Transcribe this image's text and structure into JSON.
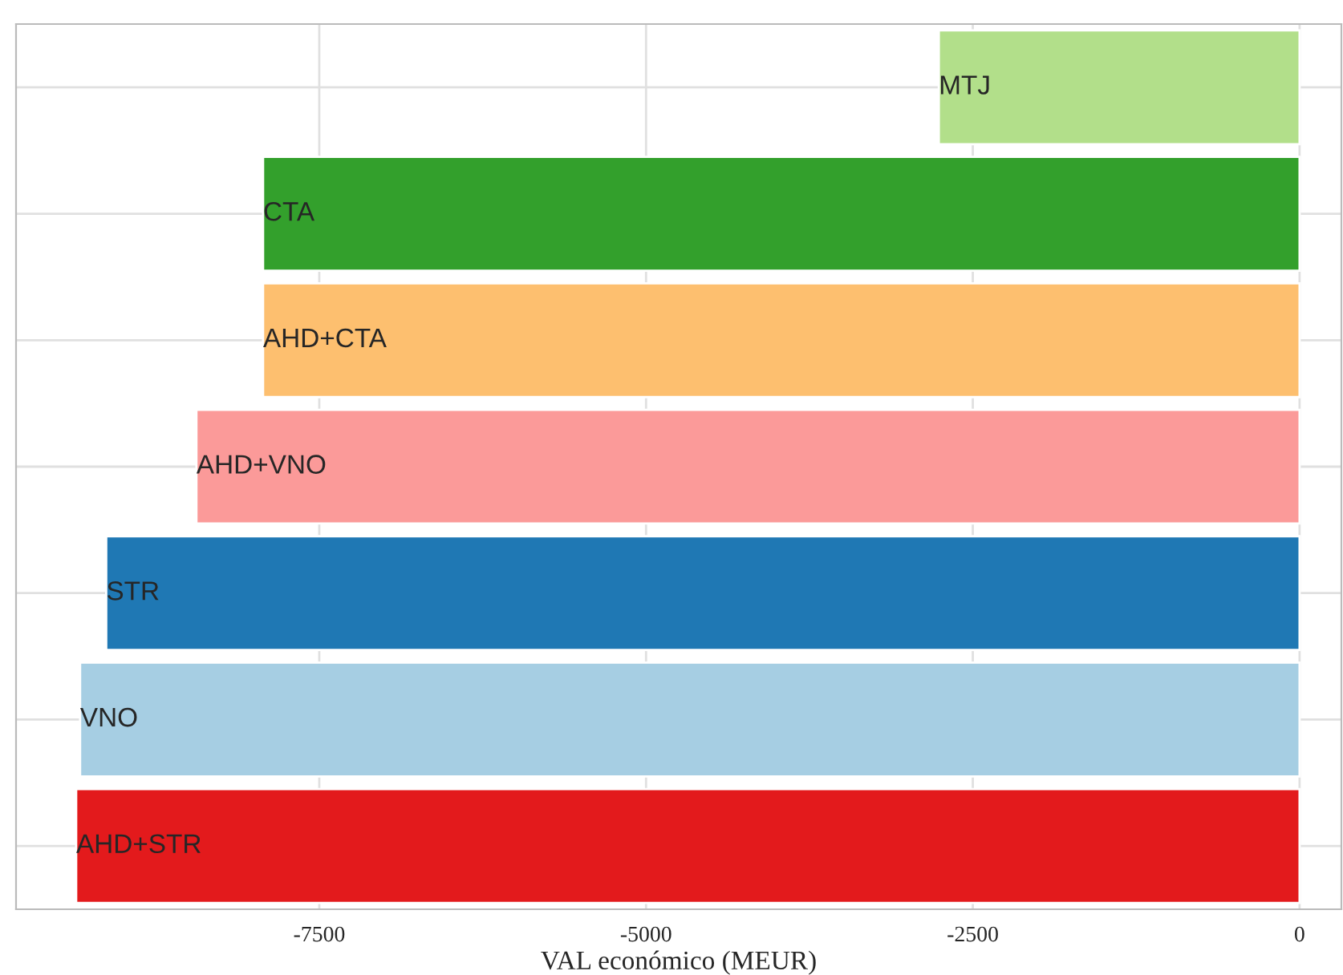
{
  "chart_data": {
    "type": "bar",
    "orientation": "horizontal",
    "xlabel": "VAL económico (MEUR)",
    "categories": [
      "MTJ",
      "CTA",
      "AHD+CTA",
      "AHD+VNO",
      "STR",
      "VNO",
      "AHD+STR"
    ],
    "values": [
      -2760,
      -7930,
      -7930,
      -8440,
      -9130,
      -9330,
      -9360
    ],
    "colors": [
      "#b2df8a",
      "#33a02c",
      "#fdbf6f",
      "#fb9a99",
      "#1f78b4",
      "#a6cee3",
      "#e31a1c"
    ],
    "xlim": [
      -9820,
      320
    ],
    "xticks": [
      -7500,
      -5000,
      -2500,
      0
    ],
    "grid": true,
    "tick_labels": "x"
  }
}
